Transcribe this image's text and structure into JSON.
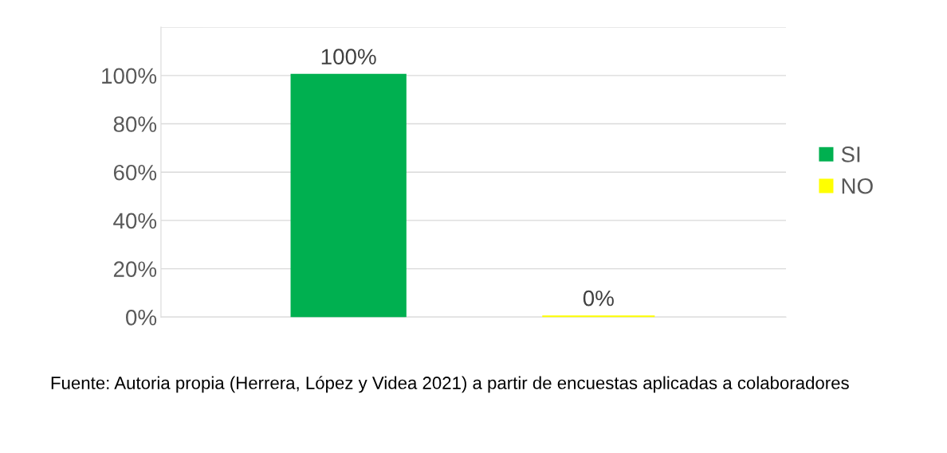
{
  "chart_data": {
    "type": "bar",
    "categories": [
      null
    ],
    "series": [
      {
        "name": "SI",
        "color": "#00b050",
        "values": [
          100
        ],
        "value_labels": [
          "100%"
        ]
      },
      {
        "name": "NO",
        "color": "#ffff00",
        "values": [
          0
        ],
        "value_labels": [
          "0%"
        ]
      }
    ],
    "ylim": [
      0,
      120
    ],
    "yticks": [
      {
        "value": 0,
        "label": "0%"
      },
      {
        "value": 20,
        "label": "20%"
      },
      {
        "value": 40,
        "label": "40%"
      },
      {
        "value": 60,
        "label": "60%"
      },
      {
        "value": 80,
        "label": "80%"
      },
      {
        "value": 100,
        "label": "100%"
      },
      {
        "value": 120,
        "label": null
      }
    ],
    "grid": "y",
    "legend": "right",
    "annotations": [
      "Fuente: Autoria propia (Herrera, López y Videa 2021) a partir de encuestas aplicadas a colaboradores"
    ]
  }
}
